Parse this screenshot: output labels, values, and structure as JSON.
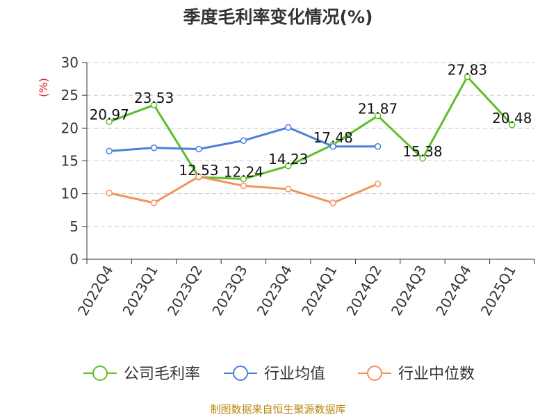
{
  "chart_data": {
    "type": "line",
    "title": "季度毛利率变化情况(%)",
    "ylabel": "(%)",
    "xlabel": "",
    "ylim": [
      0,
      30
    ],
    "yticks": [
      0,
      5,
      10,
      15,
      20,
      25,
      30
    ],
    "grid": true,
    "legend_position": "bottom",
    "categories": [
      "2022Q4",
      "2023Q1",
      "2023Q2",
      "2023Q3",
      "2023Q4",
      "2024Q1",
      "2024Q2",
      "2024Q3",
      "2024Q4",
      "2025Q1"
    ],
    "series": [
      {
        "name": "公司毛利率",
        "color": "#5cbf2a",
        "values": [
          20.97,
          23.53,
          12.53,
          12.24,
          14.23,
          17.48,
          21.87,
          15.38,
          27.83,
          20.48
        ],
        "labels": [
          "20.97",
          "23.53",
          "12.53",
          "12.24",
          "14.23",
          "17.48",
          "21.87",
          "15.38",
          "27.83",
          "20.48"
        ]
      },
      {
        "name": "行业均值",
        "color": "#4a7fdc",
        "values": [
          16.5,
          17.0,
          16.8,
          18.1,
          20.1,
          17.2,
          17.2,
          null,
          null,
          null
        ]
      },
      {
        "name": "行业中位数",
        "color": "#f2935c",
        "values": [
          10.1,
          8.6,
          12.6,
          11.2,
          10.7,
          8.6,
          11.5,
          null,
          null,
          null
        ]
      }
    ],
    "source": "制图数据来自恒生聚源数据库"
  }
}
